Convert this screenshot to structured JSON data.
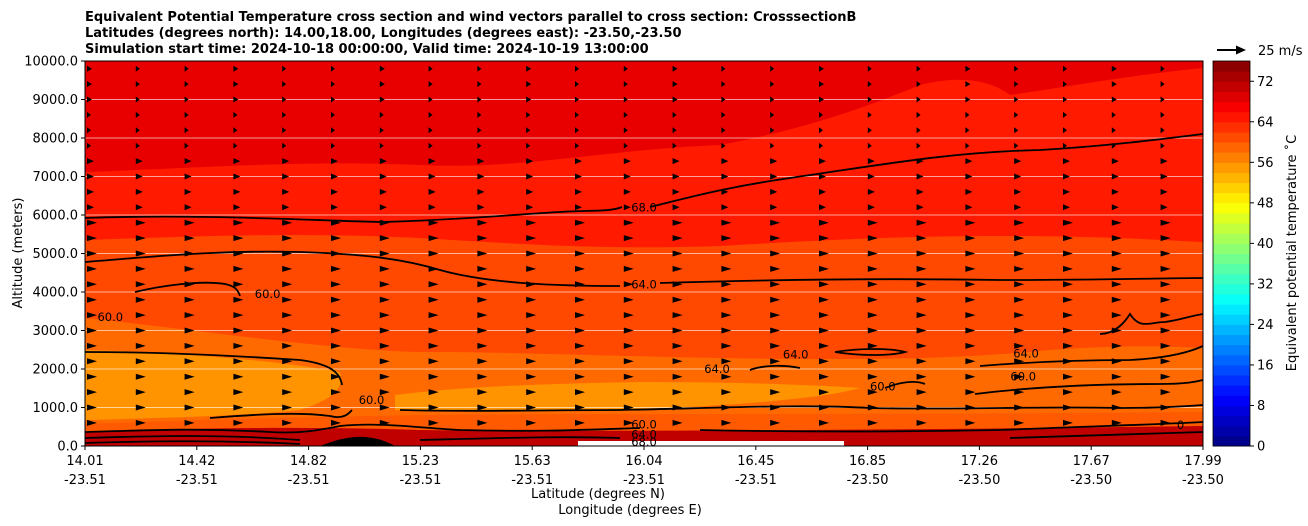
{
  "chart_data": {
    "type": "contourf",
    "title_lines": [
      "Equivalent Potential Temperature cross section and wind vectors parallel to cross section: CrosssectionB",
      "Latitudes (degrees north): 14.00,18.00, Longitudes (degrees east): -23.50,-23.50",
      "Simulation start time: 2024-10-18 00:00:00, Valid time: 2024-10-19 13:00:00"
    ],
    "xlabel_lines": [
      "Latitude (degrees N)",
      "Longitude (degrees E)"
    ],
    "ylabel": "Altitude (meters)",
    "ylim": [
      0,
      10000
    ],
    "yticks": [
      "0.0",
      "1000.0",
      "2000.0",
      "3000.0",
      "4000.0",
      "5000.0",
      "6000.0",
      "7000.0",
      "8000.0",
      "9000.0",
      "10000.0"
    ],
    "xticks": [
      {
        "lat": "14.01",
        "lon": "-23.51"
      },
      {
        "lat": "14.42",
        "lon": "-23.51"
      },
      {
        "lat": "14.82",
        "lon": "-23.51"
      },
      {
        "lat": "15.23",
        "lon": "-23.51"
      },
      {
        "lat": "15.63",
        "lon": "-23.51"
      },
      {
        "lat": "16.04",
        "lon": "-23.51"
      },
      {
        "lat": "16.45",
        "lon": "-23.51"
      },
      {
        "lat": "16.85",
        "lon": "-23.50"
      },
      {
        "lat": "17.26",
        "lon": "-23.50"
      },
      {
        "lat": "17.67",
        "lon": "-23.50"
      },
      {
        "lat": "17.99",
        "lon": "-23.50"
      }
    ],
    "grid": "horizontal",
    "colorbar": {
      "label": "Equivalent potential temperature ˚C",
      "min": 0,
      "max": 76,
      "ticks": [
        "0",
        "8",
        "16",
        "24",
        "32",
        "40",
        "48",
        "56",
        "64",
        "72"
      ],
      "colormap": "jet"
    },
    "quiver_key": "25 m/s",
    "contour_labels": [
      {
        "text": "68.0",
        "lat": 16.0,
        "alt": 6200
      },
      {
        "text": "64.0",
        "lat": 16.0,
        "alt": 4200
      },
      {
        "text": "60.0",
        "lat": 14.66,
        "alt": 3950
      },
      {
        "text": "60.0",
        "lat": 14.1,
        "alt": 3350
      },
      {
        "text": "60.0",
        "lat": 15.03,
        "alt": 1200
      },
      {
        "text": "64.0",
        "lat": 16.26,
        "alt": 2000
      },
      {
        "text": "64.0",
        "lat": 16.54,
        "alt": 2380
      },
      {
        "text": "60.0",
        "lat": 16.85,
        "alt": 1550
      },
      {
        "text": "64.0",
        "lat": 17.36,
        "alt": 2400
      },
      {
        "text": "60.0",
        "lat": 17.35,
        "alt": 1800
      },
      {
        "text": "60.0",
        "lat": 16.0,
        "alt": 560
      },
      {
        "text": "64.0",
        "lat": 16.0,
        "alt": 300
      },
      {
        "text": "68.0",
        "lat": 16.0,
        "alt": 100
      },
      {
        "text": "0",
        "lat": 17.91,
        "alt": 550
      }
    ]
  }
}
